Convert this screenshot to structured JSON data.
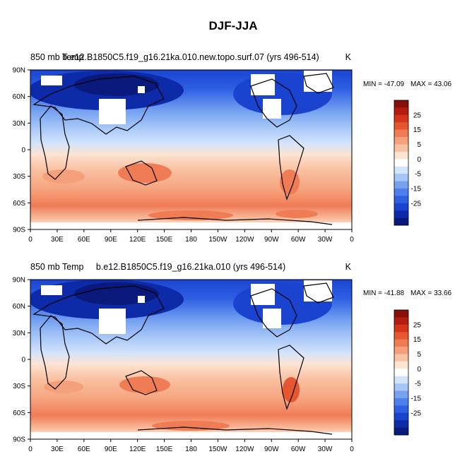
{
  "chart_data": {
    "type": "heatmap",
    "title": "DJF-JJA",
    "colorbar": {
      "levels": [
        -30,
        -25,
        -20,
        -15,
        -10,
        -5,
        0,
        5,
        10,
        15,
        20,
        25,
        30
      ],
      "tick_labels": [
        "25",
        "15",
        "5",
        "0",
        "-5",
        "-15",
        "-25"
      ],
      "colors": [
        "#0a1a7c",
        "#0d2ba8",
        "#1a44d0",
        "#2e60e3",
        "#4d80ec",
        "#76a2f1",
        "#a6c6f7",
        "#d3e4fb",
        "#ffffff",
        "#fde3d1",
        "#f9c2a3",
        "#f5a07b",
        "#f07c55",
        "#e6562f",
        "#d6341b",
        "#b51c10",
        "#861008"
      ]
    },
    "xaxis": {
      "ticks": [
        "0",
        "30E",
        "60E",
        "90E",
        "120E",
        "150E",
        "180",
        "150W",
        "120W",
        "90W",
        "60W",
        "30W",
        "0"
      ],
      "range": [
        0,
        360
      ]
    },
    "yaxis": {
      "ticks": [
        "90N",
        "60N",
        "30N",
        "0",
        "30S",
        "60S",
        "90S"
      ],
      "range": [
        -90,
        90
      ]
    },
    "panels": [
      {
        "left_title": "850 mb Temp",
        "center_title": "b.e12.B1850C5.f19_g16.21ka.010.new.topo.surf.07 (yrs 496-514)",
        "units": "K",
        "min_label": "MIN = -47.09",
        "max_label": "MAX =  43.06",
        "min": -47.09,
        "max": 43.06
      },
      {
        "left_title": "850 mb Temp",
        "center_title": "b.e12.B1850C5.f19_g16.21ka.010 (yrs 496-514)",
        "units": "K",
        "min_label": "MIN = -41.88",
        "max_label": "MAX =  33.66",
        "min": -41.88,
        "max": 33.66
      }
    ]
  }
}
